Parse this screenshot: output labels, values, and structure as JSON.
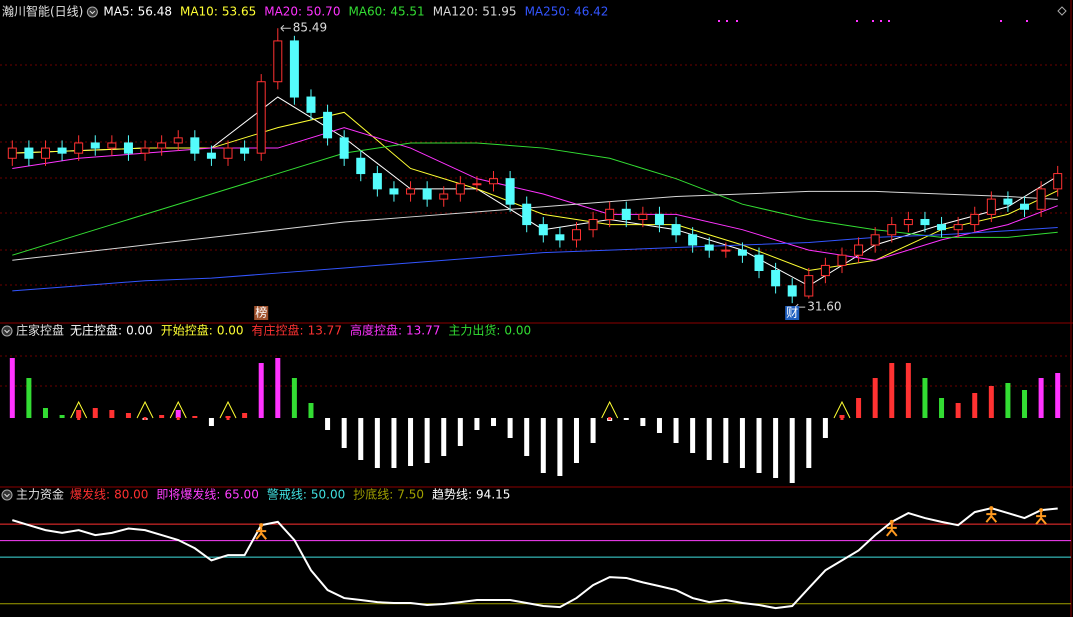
{
  "chart_data": [
    {
      "type": "candlestick",
      "title": "瀚川智能(日线)",
      "xlim": [
        -0.5,
        63.5
      ],
      "ylim": [
        28.3,
        87.1
      ],
      "up_color": "#ff3232",
      "down_color": "#54fcfc",
      "open": [
        60,
        62,
        60,
        62,
        61,
        63,
        62,
        63,
        61,
        62,
        63,
        64,
        61,
        60,
        62,
        61,
        75,
        83,
        72,
        69,
        64,
        60,
        57,
        54,
        53,
        54,
        52,
        53,
        55,
        55,
        56,
        51,
        47,
        45,
        44,
        46,
        48,
        50,
        48,
        49,
        47,
        45,
        43,
        42,
        42,
        41,
        38,
        35,
        33,
        37,
        39,
        41,
        43,
        45,
        47,
        48,
        47,
        46,
        47,
        49,
        52,
        51,
        50,
        54
      ],
      "close": [
        62,
        60,
        62,
        61,
        63,
        62,
        63,
        61,
        62,
        63,
        64,
        61,
        60,
        62,
        61,
        75,
        83,
        72,
        69,
        64,
        60,
        57,
        54,
        53,
        54,
        52,
        53,
        55,
        55,
        56,
        51,
        47,
        45,
        44,
        46,
        48,
        50,
        48,
        49,
        47,
        45,
        43,
        42,
        42,
        41,
        38,
        35,
        33,
        37,
        39,
        41,
        43,
        45,
        47,
        48,
        47,
        46,
        47,
        49,
        52,
        51,
        50,
        54,
        57
      ],
      "high": [
        63.5,
        63.5,
        63.5,
        63.5,
        64.5,
        64.5,
        64.5,
        64.5,
        63.5,
        64.5,
        65.5,
        65.5,
        62.5,
        63.5,
        63.5,
        76.5,
        85.49,
        84,
        73.5,
        70.5,
        65.5,
        61.5,
        58.5,
        55.5,
        55.5,
        55.5,
        54.5,
        56.5,
        56.5,
        57.5,
        57.5,
        52.5,
        48.5,
        46.5,
        47.5,
        49.5,
        51.5,
        51.5,
        50.5,
        50.5,
        48.5,
        46.5,
        44.5,
        43.5,
        43.5,
        42.5,
        39.5,
        36.5,
        38.5,
        40.5,
        42.5,
        44.5,
        46.5,
        48.5,
        49.5,
        49.5,
        48.5,
        48.5,
        50.5,
        53.5,
        53.5,
        52.5,
        55.5,
        58.5
      ],
      "low": [
        58.5,
        58.5,
        58.5,
        59.5,
        59.5,
        60.5,
        60.5,
        59.5,
        59.5,
        60.5,
        61.5,
        59.5,
        58.5,
        58.5,
        59.5,
        59.5,
        73.5,
        70.5,
        67.5,
        62.5,
        58.5,
        55.5,
        52.5,
        51.5,
        51.5,
        50.5,
        50.5,
        51.5,
        53.5,
        53.5,
        49.5,
        45.5,
        43.5,
        42.5,
        42.5,
        44.5,
        46.5,
        46.5,
        46.5,
        45.5,
        43.5,
        41.5,
        40.5,
        40.5,
        39.5,
        36.5,
        33.5,
        31.6,
        32.5,
        35.5,
        37.5,
        39.5,
        41.5,
        43.5,
        45.5,
        45.5,
        44.5,
        44.5,
        45.5,
        47.5,
        49.5,
        48.5,
        48.5,
        52.5
      ],
      "series": [
        {
          "name": "MA5:",
          "color": "#ffffff",
          "value": 56.48,
          "x": [
            0,
            4,
            8,
            12,
            16,
            20,
            24,
            28,
            32,
            36,
            40,
            44,
            48,
            52,
            56,
            60,
            63
          ],
          "values": [
            61,
            61.5,
            62,
            62,
            72,
            64,
            54,
            54,
            46,
            48,
            46,
            42,
            35,
            43,
            47,
            50.5,
            56.48
          ]
        },
        {
          "name": "MA10:",
          "color": "#ffff33",
          "value": 53.65,
          "x": [
            0,
            4,
            8,
            12,
            16,
            20,
            24,
            28,
            32,
            36,
            40,
            44,
            48,
            52,
            56,
            60,
            63
          ],
          "values": [
            61,
            61.5,
            62,
            62,
            66,
            69,
            58,
            54,
            49,
            47,
            47,
            43,
            38,
            40,
            46,
            49,
            53.65
          ]
        },
        {
          "name": "MA20:",
          "color": "#ff33ff",
          "value": 50.7,
          "label": "50.70",
          "x": [
            0,
            4,
            8,
            12,
            16,
            20,
            24,
            28,
            32,
            36,
            40,
            44,
            48,
            52,
            56,
            60,
            63
          ],
          "values": [
            58,
            60,
            61,
            62,
            62,
            66,
            62,
            56,
            53,
            49,
            49,
            46,
            42,
            40,
            44,
            47,
            50.7
          ]
        },
        {
          "name": "MA60:",
          "color": "#33dd33",
          "value": 45.51,
          "x": [
            0,
            4,
            8,
            12,
            16,
            20,
            24,
            28,
            32,
            36,
            40,
            44,
            48,
            52,
            56,
            60,
            63
          ],
          "values": [
            41,
            45,
            49,
            53,
            57,
            61,
            63,
            63,
            62,
            60,
            56,
            51,
            48,
            46,
            44.5,
            44.5,
            45.51
          ]
        },
        {
          "name": "MA120:",
          "color": "#d8d8d8",
          "value": 51.95,
          "x": [
            0,
            4,
            8,
            12,
            16,
            20,
            24,
            28,
            32,
            36,
            40,
            44,
            48,
            52,
            56,
            60,
            63
          ],
          "values": [
            40,
            41.5,
            43,
            44.5,
            46,
            47.5,
            48.5,
            49.5,
            50.5,
            51.5,
            52.5,
            53,
            53.5,
            53.5,
            53,
            52.5,
            51.95
          ]
        },
        {
          "name": "MA250:",
          "color": "#3355ff",
          "value": 46.42,
          "x": [
            0,
            4,
            8,
            12,
            16,
            20,
            24,
            28,
            32,
            36,
            40,
            44,
            48,
            52,
            56,
            60,
            63
          ],
          "values": [
            34,
            35,
            36,
            36.5,
            37.5,
            38.5,
            39.5,
            40.5,
            41.5,
            42,
            42.5,
            43,
            43.5,
            44.5,
            45,
            45.8,
            46.42
          ]
        }
      ],
      "annotations": [
        {
          "index": 16,
          "value": 85.49
        },
        {
          "index": 47,
          "value": 31.6,
          "label": "31.60"
        }
      ],
      "markers": [
        {
          "text": "榜",
          "index": 15,
          "color": "#a0522d"
        },
        {
          "text": "财",
          "index": 47,
          "color": "#2060c0"
        }
      ]
    },
    {
      "type": "bar",
      "title": "庄家控盘",
      "xlim": [
        -0.5,
        63.5
      ],
      "ylim": [
        -67,
        83
      ],
      "legend": [
        {
          "name": "无庄控盘:",
          "color": "#ffffff",
          "value": 0,
          "label": "0.00"
        },
        {
          "name": "开始控盘:",
          "color": "#ffff33",
          "value": 0,
          "label": "0.00"
        },
        {
          "name": "有庄控盘:",
          "color": "#ff3232",
          "value": 13.77
        },
        {
          "name": "高度控盘:",
          "color": "#ff33ff",
          "value": 13.77
        },
        {
          "name": "主力出货:",
          "color": "#33dd33",
          "value": 0,
          "label": "0.00"
        }
      ],
      "values": [
        60,
        40,
        10,
        3,
        8,
        10,
        8,
        5,
        -2,
        3,
        8,
        2,
        -8,
        2,
        5,
        55,
        60,
        40,
        15,
        -12,
        -30,
        -42,
        -50,
        -50,
        -48,
        -45,
        -38,
        -28,
        -12,
        -8,
        -20,
        -38,
        -55,
        -58,
        -45,
        -25,
        -3,
        -2,
        -8,
        -15,
        -25,
        -35,
        -42,
        -45,
        -50,
        -55,
        -60,
        -65,
        -50,
        -20,
        3,
        20,
        40,
        55,
        55,
        40,
        20,
        15,
        25,
        32,
        35,
        28,
        40,
        45
      ],
      "colors": [
        "#ff33ff",
        "#33dd33",
        "#33dd33",
        "#33dd33",
        "#ff3232",
        "#ff3232",
        "#ff3232",
        "#ff3232",
        "#ffffff",
        "#ff3232",
        "#ff33ff",
        "#ff3232",
        "#ffffff",
        "#ff3232",
        "#ff3232",
        "#ff33ff",
        "#ff33ff",
        "#33dd33",
        "#33dd33",
        "#ffffff",
        "#ffffff",
        "#ffffff",
        "#ffffff",
        "#ffffff",
        "#ffffff",
        "#ffffff",
        "#ffffff",
        "#ffffff",
        "#ffffff",
        "#ffffff",
        "#ffffff",
        "#ffffff",
        "#ffffff",
        "#ffffff",
        "#ffffff",
        "#ffffff",
        "#ffffff",
        "#ffffff",
        "#ffffff",
        "#ffffff",
        "#ffffff",
        "#ffffff",
        "#ffffff",
        "#ffffff",
        "#ffffff",
        "#ffffff",
        "#ffffff",
        "#ffffff",
        "#ffffff",
        "#ffffff",
        "#ff3232",
        "#ff3232",
        "#ff3232",
        "#ff3232",
        "#ff3232",
        "#33dd33",
        "#33dd33",
        "#ff3232",
        "#ff3232",
        "#ff3232",
        "#33dd33",
        "#33dd33",
        "#ff33ff",
        "#ff33ff"
      ],
      "signals": [
        4,
        8,
        10,
        13,
        36,
        50
      ],
      "signal_color": "#ffff33"
    },
    {
      "type": "line",
      "title": "主力资金",
      "xlim": [
        -0.5,
        63.5
      ],
      "ylim": [
        -4.5,
        111
      ],
      "levels": [
        {
          "name": "爆发线:",
          "color": "#ff3030",
          "value": 80,
          "label": "80.00"
        },
        {
          "name": "即将爆发线:",
          "color": "#ff40ff",
          "value": 65,
          "label": "65.00"
        },
        {
          "name": "警戒线:",
          "color": "#40e0e0",
          "value": 50,
          "label": "50.00"
        },
        {
          "name": "抄底线:",
          "color": "#a0a000",
          "value": 7.5,
          "label": "7.50"
        }
      ],
      "series": [
        {
          "name": "趋势线:",
          "color": "#ffffff",
          "value": 94.15,
          "values": [
            83.6,
            79,
            74.5,
            72,
            74.5,
            70,
            72,
            76,
            74.5,
            70,
            65.5,
            58,
            47,
            51.8,
            51.8,
            79,
            82,
            65.5,
            38,
            20,
            12.7,
            11,
            9,
            8.2,
            8.2,
            6.4,
            7.3,
            9,
            11,
            11,
            11,
            8.2,
            5.5,
            4.5,
            12.7,
            24.5,
            31.8,
            31,
            27,
            23.6,
            20,
            12.7,
            9,
            11,
            8.2,
            6.4,
            3.6,
            5.5,
            21.8,
            38,
            47,
            56,
            70,
            82,
            90,
            85.5,
            82,
            79,
            90.9,
            94.5,
            90,
            85.5,
            92.7,
            94.15
          ]
        }
      ],
      "signals": [
        15,
        53,
        59,
        62
      ],
      "signal_color": "#ff9a20"
    }
  ]
}
